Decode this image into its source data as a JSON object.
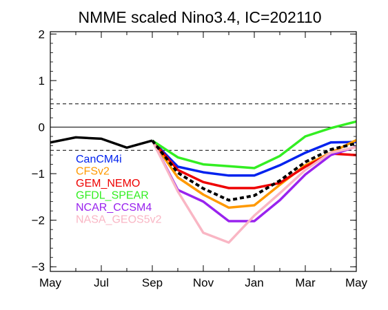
{
  "chart_data": {
    "type": "line",
    "title": "NMME scaled Nino3.4, IC=202110",
    "xlabel": "",
    "ylabel": "",
    "x_tick_labels": [
      "May",
      "Jul",
      "Sep",
      "Nov",
      "Jan",
      "Mar",
      "May"
    ],
    "x_tick_positions": [
      0,
      2,
      4,
      6,
      8,
      10,
      12
    ],
    "xlim": [
      0,
      12
    ],
    "y_ticks": [
      -3,
      -2,
      -1,
      0,
      1,
      2
    ],
    "ylim": [
      -3.1,
      2.05
    ],
    "reference_lines": [
      {
        "value": 0,
        "style": "solid"
      },
      {
        "value": 0.5,
        "style": "dashed"
      },
      {
        "value": -0.5,
        "style": "dashed"
      }
    ],
    "observed": {
      "color": "#000000",
      "x": [
        0,
        1,
        2,
        3,
        4
      ],
      "values": [
        -0.33,
        -0.22,
        -0.25,
        -0.44,
        -0.29
      ]
    },
    "series": [
      {
        "name": "CanCM4i",
        "color": "#0022ee",
        "x": [
          4,
          5,
          6,
          7,
          8,
          9,
          10,
          11,
          12
        ],
        "values": [
          -0.29,
          -0.85,
          -0.97,
          -1.04,
          -1.04,
          -0.82,
          -0.55,
          -0.33,
          -0.32
        ]
      },
      {
        "name": "CFSv2",
        "color": "#ff9900",
        "x": [
          4,
          5,
          6,
          7,
          8,
          9,
          10,
          11,
          12
        ],
        "values": [
          -0.29,
          -1.08,
          -1.45,
          -1.73,
          -1.68,
          -1.24,
          -0.82,
          -0.55,
          -0.28
        ]
      },
      {
        "name": "GEM_NEMO",
        "color": "#ee0000",
        "x": [
          4,
          5,
          6,
          7,
          8,
          9,
          10,
          11,
          12
        ],
        "values": [
          -0.29,
          -0.92,
          -1.18,
          -1.31,
          -1.31,
          -1.2,
          -0.85,
          -0.57,
          -0.6
        ]
      },
      {
        "name": "GFDL_SPEAR",
        "color": "#33ee22",
        "x": [
          4,
          5,
          6,
          7,
          8,
          9,
          10,
          11,
          12
        ],
        "values": [
          -0.29,
          -0.65,
          -0.8,
          -0.84,
          -0.88,
          -0.62,
          -0.2,
          -0.02,
          0.12
        ]
      },
      {
        "name": "NCAR_CCSM4",
        "color": "#9922ee",
        "x": [
          4,
          5,
          6,
          7,
          8,
          9,
          10,
          11,
          12
        ],
        "values": [
          -0.29,
          -1.35,
          -1.6,
          -2.02,
          -2.02,
          -1.57,
          -1.02,
          -0.6,
          -0.42
        ]
      },
      {
        "name": "NASA_GEOS5v2",
        "color": "#f9b6c4",
        "x": [
          4,
          5,
          6,
          7,
          8,
          9,
          10,
          11,
          12
        ],
        "values": [
          -0.29,
          -1.38,
          -2.27,
          -2.48,
          -1.9,
          -1.42,
          -0.92,
          -0.55,
          -0.43
        ]
      },
      {
        "name": "",
        "color": "#000000",
        "style": "dashed",
        "x": [
          4,
          5,
          6,
          7,
          8,
          9,
          10,
          11,
          12
        ],
        "values": [
          -0.29,
          -0.98,
          -1.32,
          -1.57,
          -1.47,
          -1.15,
          -0.75,
          -0.48,
          -0.35
        ]
      }
    ],
    "legend_placement": "left",
    "grid": false
  }
}
